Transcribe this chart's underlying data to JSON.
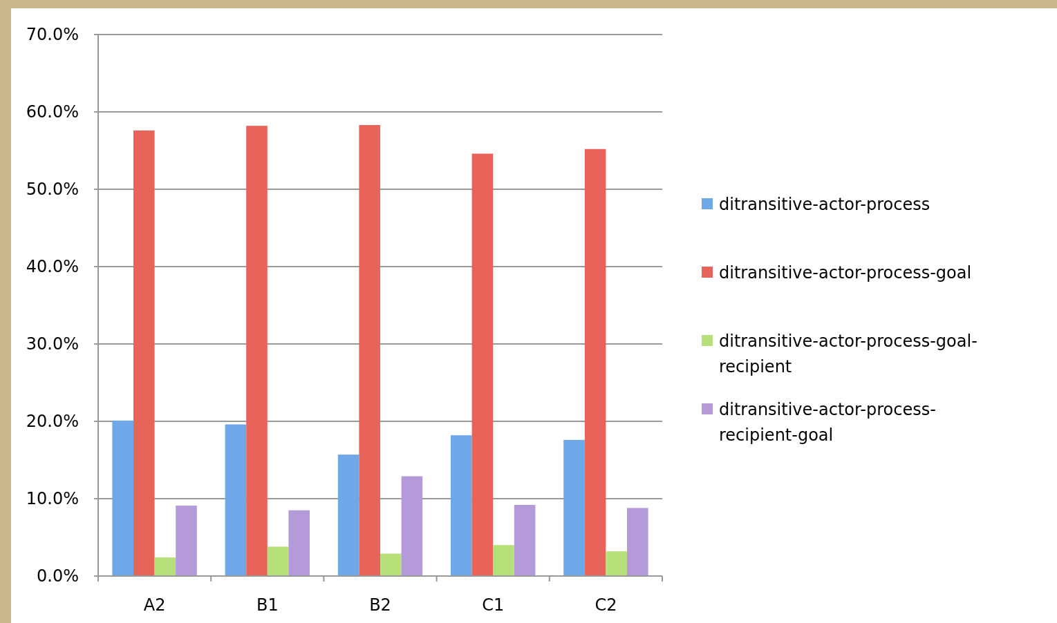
{
  "chart_data": {
    "type": "bar",
    "categories": [
      "A2",
      "B1",
      "B2",
      "C1",
      "C2"
    ],
    "series": [
      {
        "name": "ditransitive-actor-process",
        "color": "#6fa8e8",
        "values": [
          20.1,
          19.6,
          15.7,
          18.2,
          17.6
        ]
      },
      {
        "name": "ditransitive-actor-process-goal",
        "color": "#e8645a",
        "values": [
          57.6,
          58.2,
          58.3,
          54.6,
          55.2
        ]
      },
      {
        "name": "ditransitive-actor-process-goal-recipient",
        "color": "#b8e07a",
        "values": [
          2.4,
          3.8,
          2.9,
          4.0,
          3.2
        ]
      },
      {
        "name": "ditransitive-actor-process-recipient-goal",
        "color": "#b49ad8",
        "values": [
          9.1,
          8.5,
          12.9,
          9.2,
          8.8
        ]
      }
    ],
    "ylim": [
      0,
      70
    ],
    "yticks": [
      {
        "value": 0,
        "label": "0.0%"
      },
      {
        "value": 10,
        "label": "10.0%"
      },
      {
        "value": 20,
        "label": "20.0%"
      },
      {
        "value": 30,
        "label": "30.0%"
      },
      {
        "value": 40,
        "label": "40.0%"
      },
      {
        "value": 50,
        "label": "50.0%"
      },
      {
        "value": 60,
        "label": "60.0%"
      },
      {
        "value": 70,
        "label": "70.0%"
      }
    ],
    "grid": "y",
    "legend": "right"
  }
}
